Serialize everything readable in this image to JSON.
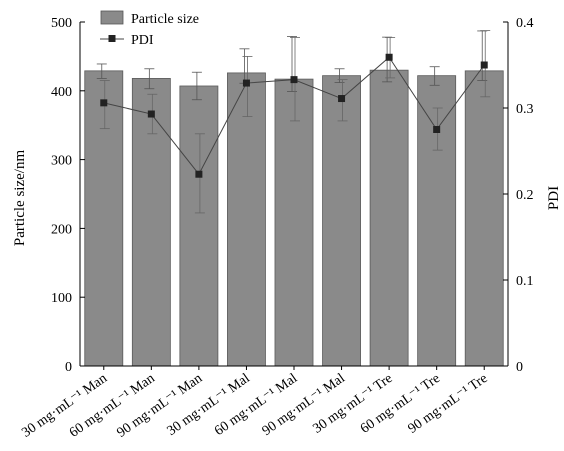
{
  "chart_data": {
    "type": "bar",
    "categories": [
      "30 mg·mL⁻¹ Man",
      "60 mg·mL⁻¹ Man",
      "90 mg·mL⁻¹ Man",
      "30 mg·mL⁻¹ Mal",
      "60 mg·mL⁻¹ Mal",
      "90 mg·mL⁻¹ Mal",
      "30 mg·mL⁻¹ Tre",
      "60 mg·mL⁻¹ Tre",
      "90 mg·mL⁻¹ Tre"
    ],
    "series": [
      {
        "name": "Particle size",
        "type": "bar",
        "axis": "left",
        "color": "#8a8a8a",
        "values": [
          429,
          418,
          407,
          426,
          417,
          422,
          430,
          422,
          429
        ],
        "error_low": [
          418,
          403,
          387,
          411,
          399,
          412,
          413,
          408,
          415
        ],
        "error_high": [
          439,
          432,
          427,
          461,
          479,
          432,
          478,
          435,
          487
        ]
      },
      {
        "name": "PDI",
        "type": "line",
        "axis": "right",
        "color": "#444444",
        "values": [
          0.306,
          0.293,
          0.223,
          0.329,
          0.333,
          0.311,
          0.359,
          0.275,
          0.35
        ],
        "error_low": [
          0.276,
          0.27,
          0.178,
          0.29,
          0.285,
          0.285,
          0.335,
          0.251,
          0.313
        ],
        "error_high": [
          0.332,
          0.316,
          0.27,
          0.36,
          0.382,
          0.333,
          0.382,
          0.3,
          0.39
        ]
      }
    ],
    "ylabel": "Particle size/nm",
    "ylim": [
      0,
      500
    ],
    "yticks": [
      "0",
      "100",
      "200",
      "300",
      "400",
      "500"
    ],
    "y2label": "PDI",
    "y2lim": [
      0,
      0.4
    ],
    "y2ticks": [
      "0",
      "0.1",
      "0.2",
      "0.3",
      "0.4"
    ],
    "legend": "top-left",
    "grid": false
  }
}
